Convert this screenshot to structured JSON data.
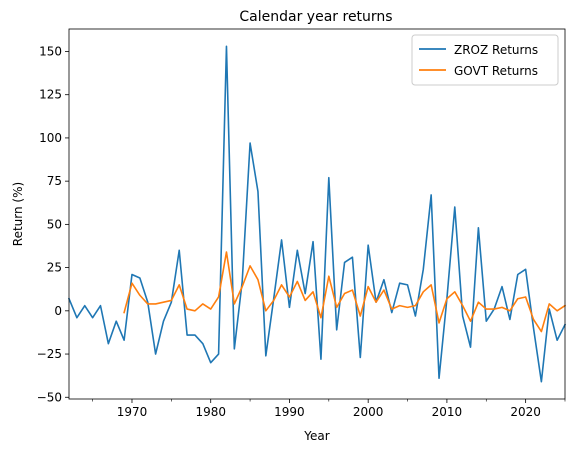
{
  "chart_data": {
    "type": "line",
    "title": "Calendar year returns",
    "xlabel": "Year",
    "ylabel": "Return (%)",
    "xlim": [
      1962,
      2025
    ],
    "ylim": [
      -51,
      163
    ],
    "x_ticks": [
      1970,
      1980,
      1990,
      2000,
      2010,
      2020
    ],
    "y_ticks": [
      -50,
      -25,
      0,
      25,
      50,
      75,
      100,
      125,
      150
    ],
    "grid": false,
    "legend_position": "top-right",
    "series": [
      {
        "name": "ZROZ Returns",
        "color": "#1f77b4",
        "x": [
          1962,
          1963,
          1964,
          1965,
          1966,
          1967,
          1968,
          1969,
          1970,
          1971,
          1972,
          1973,
          1974,
          1975,
          1976,
          1977,
          1978,
          1979,
          1980,
          1981,
          1982,
          1983,
          1984,
          1985,
          1986,
          1987,
          1988,
          1989,
          1990,
          1991,
          1992,
          1993,
          1994,
          1995,
          1996,
          1997,
          1998,
          1999,
          2000,
          2001,
          2002,
          2003,
          2004,
          2005,
          2006,
          2007,
          2008,
          2009,
          2010,
          2011,
          2012,
          2013,
          2014,
          2015,
          2016,
          2017,
          2018,
          2019,
          2020,
          2021,
          2022,
          2023,
          2024,
          2025
        ],
        "values": [
          7,
          -4,
          3,
          -4,
          3,
          -19,
          -6,
          -17,
          21,
          19,
          5,
          -25,
          -6,
          5,
          35,
          -14,
          -14,
          -19,
          -30,
          -25,
          153,
          -22,
          17,
          97,
          69,
          -26,
          7,
          41,
          2,
          35,
          10,
          40,
          -28,
          77,
          -11,
          28,
          31,
          -27,
          38,
          5,
          18,
          -1,
          16,
          15,
          -3,
          24,
          67,
          -39,
          7,
          60,
          -3,
          -21,
          48,
          -6,
          1,
          14,
          -5,
          21,
          24,
          -10,
          -41,
          1,
          -17,
          -8
        ]
      },
      {
        "name": "GOVT Returns",
        "color": "#ff7f0e",
        "x": [
          1969,
          1970,
          1971,
          1972,
          1973,
          1974,
          1975,
          1976,
          1977,
          1978,
          1979,
          1980,
          1981,
          1982,
          1983,
          1984,
          1985,
          1986,
          1987,
          1988,
          1989,
          1990,
          1991,
          1992,
          1993,
          1994,
          1995,
          1996,
          1997,
          1998,
          1999,
          2000,
          2001,
          2002,
          2003,
          2004,
          2005,
          2006,
          2007,
          2008,
          2009,
          2010,
          2011,
          2012,
          2013,
          2014,
          2015,
          2016,
          2017,
          2018,
          2019,
          2020,
          2021,
          2022,
          2023,
          2024,
          2025
        ],
        "values": [
          -1,
          16,
          9,
          4,
          4,
          5,
          6,
          15,
          1,
          0,
          4,
          1,
          8,
          34,
          4,
          14,
          26,
          18,
          0,
          6,
          15,
          8,
          17,
          6,
          11,
          -4,
          20,
          2,
          10,
          12,
          -3,
          14,
          5,
          12,
          1,
          3,
          2,
          3,
          11,
          15,
          -7,
          7,
          11,
          3,
          -6,
          5,
          1,
          1,
          2,
          0,
          7,
          8,
          -5,
          -12,
          4,
          0,
          3
        ]
      }
    ]
  }
}
